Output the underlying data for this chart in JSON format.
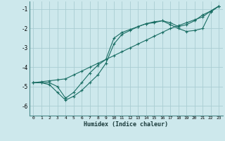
{
  "xlabel": "Humidex (Indice chaleur)",
  "ylabel": "",
  "background_color": "#cde8ec",
  "grid_color": "#aacdd2",
  "line_color": "#1a6e64",
  "xlim": [
    -0.5,
    23.5
  ],
  "ylim": [
    -6.5,
    -0.6
  ],
  "yticks": [
    -6,
    -5,
    -4,
    -3,
    -2,
    -1
  ],
  "xticks": [
    0,
    1,
    2,
    3,
    4,
    5,
    6,
    7,
    8,
    9,
    10,
    11,
    12,
    13,
    14,
    15,
    16,
    17,
    18,
    19,
    20,
    21,
    22,
    23
  ],
  "series": [
    {
      "x": [
        0,
        1,
        2,
        3,
        4,
        5,
        6,
        7,
        8,
        9,
        10,
        11,
        12,
        13,
        14,
        15,
        16,
        17,
        18,
        19,
        20,
        21,
        22,
        23
      ],
      "y": [
        -4.8,
        -4.75,
        -4.7,
        -4.65,
        -4.6,
        -4.4,
        -4.2,
        -4.0,
        -3.8,
        -3.6,
        -3.4,
        -3.2,
        -3.0,
        -2.8,
        -2.6,
        -2.4,
        -2.2,
        -2.0,
        -1.85,
        -1.7,
        -1.55,
        -1.4,
        -1.1,
        -0.85
      ]
    },
    {
      "x": [
        0,
        1,
        2,
        3,
        4,
        5,
        6,
        7,
        8,
        9,
        10,
        11,
        12,
        13,
        14,
        15,
        16,
        17,
        18,
        19,
        20,
        21,
        22,
        23
      ],
      "y": [
        -4.8,
        -4.8,
        -4.9,
        -5.3,
        -5.7,
        -5.5,
        -5.2,
        -4.8,
        -4.4,
        -3.8,
        -2.8,
        -2.3,
        -2.1,
        -1.9,
        -1.75,
        -1.7,
        -1.6,
        -1.8,
        -2.0,
        -2.15,
        -2.1,
        -2.0,
        -1.15,
        -0.85
      ]
    },
    {
      "x": [
        0,
        1,
        2,
        3,
        4,
        5,
        6,
        7,
        8,
        9,
        10,
        11,
        12,
        13,
        14,
        15,
        16,
        17,
        18,
        19,
        20,
        21,
        22,
        23
      ],
      "y": [
        -4.8,
        -4.8,
        -4.8,
        -5.0,
        -5.6,
        -5.3,
        -4.8,
        -4.3,
        -3.9,
        -3.6,
        -2.5,
        -2.2,
        -2.05,
        -1.9,
        -1.75,
        -1.65,
        -1.6,
        -1.7,
        -1.9,
        -1.8,
        -1.6,
        -1.3,
        -1.1,
        -0.85
      ]
    }
  ]
}
